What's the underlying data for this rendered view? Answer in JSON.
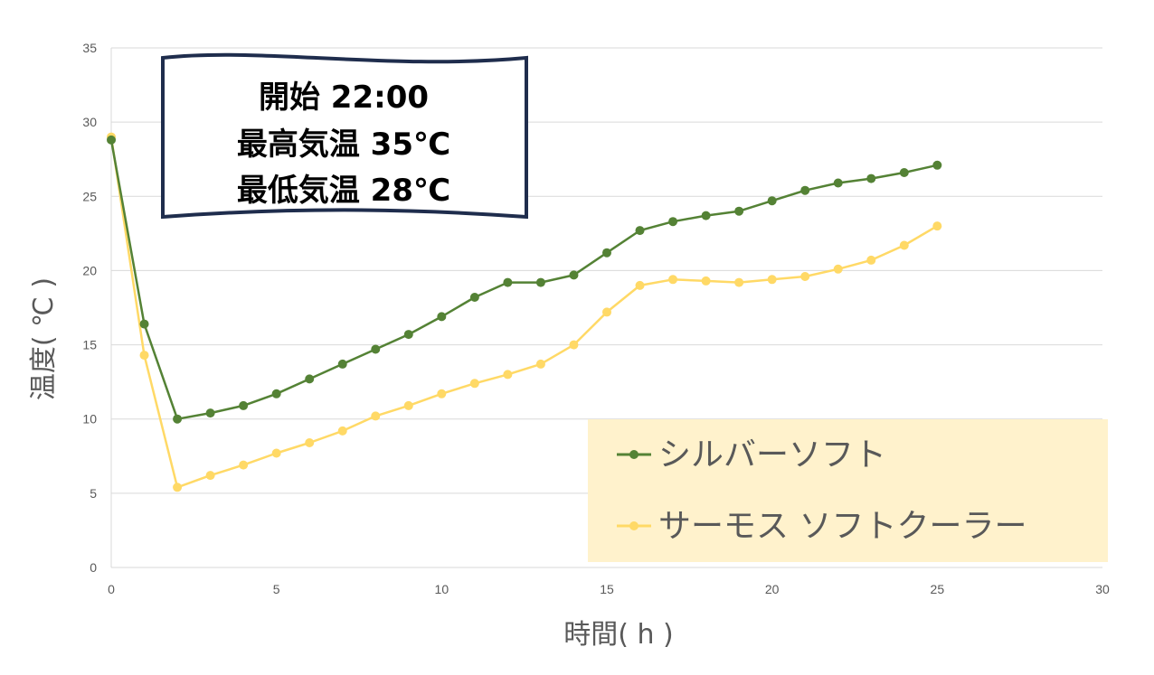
{
  "chart_data": {
    "type": "line",
    "xlabel": "時間( h )",
    "ylabel": "温度( ℃ )",
    "xlim": [
      0,
      30
    ],
    "ylim": [
      0,
      35
    ],
    "x_ticks": [
      0,
      5,
      10,
      15,
      20,
      25,
      30
    ],
    "y_ticks": [
      0,
      5,
      10,
      15,
      20,
      25,
      30,
      35
    ],
    "grid": "horizontal",
    "legend_position": "bottom-right",
    "annotation": {
      "lines": [
        "開始 22:00",
        "最高気温 35℃",
        "最低気温 28℃"
      ]
    },
    "series": [
      {
        "name": "シルバーソフト",
        "color": "#548235",
        "x": [
          0,
          1,
          2,
          3,
          4,
          5,
          6,
          7,
          8,
          9,
          10,
          11,
          12,
          13,
          14,
          15,
          16,
          17,
          18,
          19,
          20,
          21,
          22,
          23,
          24,
          25
        ],
        "values": [
          28.8,
          16.4,
          10.0,
          10.4,
          10.9,
          11.7,
          12.7,
          13.7,
          14.7,
          15.7,
          16.9,
          18.2,
          19.2,
          19.2,
          19.7,
          21.2,
          22.7,
          23.3,
          23.7,
          24.0,
          24.7,
          25.4,
          25.9,
          26.2,
          26.6,
          27.1
        ]
      },
      {
        "name": "サーモス ソフトクーラー",
        "color": "#FFD966",
        "x": [
          0,
          1,
          2,
          3,
          4,
          5,
          6,
          7,
          8,
          9,
          10,
          11,
          12,
          13,
          14,
          15,
          16,
          17,
          18,
          19,
          20,
          21,
          22,
          23,
          24,
          25
        ],
        "values": [
          29.0,
          14.3,
          5.4,
          6.2,
          6.9,
          7.7,
          8.4,
          9.2,
          10.2,
          10.9,
          11.7,
          12.4,
          13.0,
          13.7,
          15.0,
          17.2,
          19.0,
          19.4,
          19.3,
          19.2,
          19.4,
          19.6,
          20.1,
          20.7,
          21.7,
          23.0
        ]
      }
    ]
  }
}
